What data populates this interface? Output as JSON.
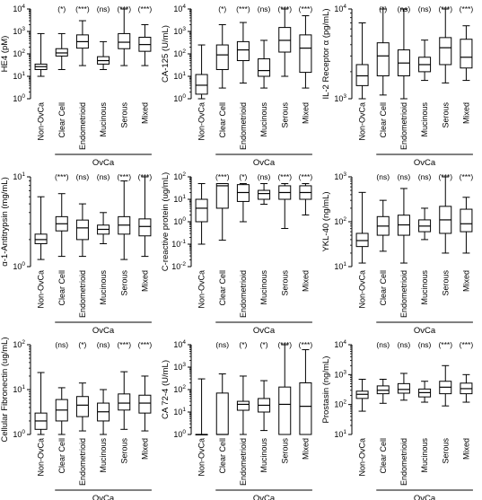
{
  "chart_data": [
    {
      "type": "boxplot",
      "ylabel": "HE4  (pM)",
      "log": true,
      "ylim": [
        1,
        10000
      ],
      "ytick_exponents": [
        0,
        1,
        2,
        3,
        4
      ],
      "group_label": "OvCa",
      "categories": [
        "Non-OvCa",
        "Clear Cell",
        "Endometrioid",
        "Mucinous",
        "Serous",
        "Mixed"
      ],
      "significance": [
        "",
        "(*)",
        "(***)",
        "(ns)",
        "(***)",
        "(***)"
      ],
      "boxes": [
        {
          "min": 10,
          "q1": 20,
          "median": 27,
          "q3": 35,
          "max": 800
        },
        {
          "min": 20,
          "q1": 80,
          "median": 110,
          "q3": 170,
          "max": 800
        },
        {
          "min": 30,
          "q1": 180,
          "median": 350,
          "q3": 700,
          "max": 3000
        },
        {
          "min": 20,
          "q1": 35,
          "median": 50,
          "q3": 75,
          "max": 350
        },
        {
          "min": 30,
          "q1": 170,
          "median": 330,
          "q3": 800,
          "max": 10000
        },
        {
          "min": 30,
          "q1": 130,
          "median": 260,
          "q3": 550,
          "max": 2000
        }
      ]
    },
    {
      "type": "boxplot",
      "ylabel": "CA-125 (U/mL)",
      "log": true,
      "ylim": [
        1,
        10000
      ],
      "ytick_exponents": [
        0,
        1,
        2,
        3,
        4
      ],
      "group_label": "OvCa",
      "categories": [
        "Non-OvCa",
        "Clear Cell",
        "Endometrioid",
        "Mucinous",
        "Serous",
        "Mixed"
      ],
      "significance": [
        "",
        "(*)",
        "(***)",
        "(ns)",
        "(***)",
        "(***)"
      ],
      "boxes": [
        {
          "min": 1,
          "q1": 1.6,
          "median": 4,
          "q3": 12,
          "max": 250
        },
        {
          "min": 3,
          "q1": 20,
          "median": 90,
          "q3": 250,
          "max": 2000
        },
        {
          "min": 5,
          "q1": 50,
          "median": 150,
          "q3": 350,
          "max": 2500
        },
        {
          "min": 3,
          "q1": 10,
          "median": 18,
          "q3": 60,
          "max": 400
        },
        {
          "min": 10,
          "q1": 120,
          "median": 400,
          "q3": 1500,
          "max": 10000
        },
        {
          "min": 3,
          "q1": 15,
          "median": 180,
          "q3": 700,
          "max": 5000
        }
      ]
    },
    {
      "type": "boxplot",
      "ylabel": "IL-2 Receptor α (pg/mL)",
      "log": true,
      "ylim": [
        1000,
        10000
      ],
      "ytick_exponents": [
        3,
        4
      ],
      "group_label": "OvCa",
      "categories": [
        "Non-OvCa",
        "Clear Cell",
        "Endometrioid",
        "Mucinous",
        "Serous",
        "Mixed"
      ],
      "significance": [
        "",
        "(*)",
        "(ns)",
        "(ns)",
        "(***)",
        "(***)"
      ],
      "boxes": [
        {
          "min": 1000,
          "q1": 1400,
          "median": 1800,
          "q3": 2400,
          "max": 7000
        },
        {
          "min": 1100,
          "q1": 1800,
          "median": 3000,
          "q3": 4200,
          "max": 10000
        },
        {
          "min": 1000,
          "q1": 1800,
          "median": 2500,
          "q3": 3500,
          "max": 10000
        },
        {
          "min": 1600,
          "q1": 2000,
          "median": 2400,
          "q3": 2900,
          "max": 4500
        },
        {
          "min": 1500,
          "q1": 2400,
          "median": 3700,
          "q3": 4800,
          "max": 10000
        },
        {
          "min": 1600,
          "q1": 2200,
          "median": 2900,
          "q3": 4600,
          "max": 6500
        }
      ]
    },
    {
      "type": "boxplot",
      "ylabel": "α-1-Antitrypsin (mg/mL)",
      "log": true,
      "ylim": [
        1,
        10
      ],
      "ytick_exponents": [
        0,
        1
      ],
      "group_label": "OvCa",
      "categories": [
        "Non-OvCa",
        "Clear Cell",
        "Endometrioid",
        "Mucinous",
        "Serous",
        "Mixed"
      ],
      "significance": [
        "",
        "(***)",
        "(ns)",
        "(ns)",
        "(***)",
        "(***)"
      ],
      "boxes": [
        {
          "min": 1.2,
          "q1": 1.8,
          "median": 2.0,
          "q3": 2.3,
          "max": 6
        },
        {
          "min": 1.3,
          "q1": 2.5,
          "median": 3.0,
          "q3": 3.6,
          "max": 6.5
        },
        {
          "min": 1.3,
          "q1": 2.0,
          "median": 2.7,
          "q3": 3.3,
          "max": 5
        },
        {
          "min": 1.8,
          "q1": 2.3,
          "median": 2.6,
          "q3": 2.9,
          "max": 4
        },
        {
          "min": 1.2,
          "q1": 2.3,
          "median": 2.9,
          "q3": 3.6,
          "max": 9
        },
        {
          "min": 1.3,
          "q1": 2.2,
          "median": 2.8,
          "q3": 3.4,
          "max": 10
        }
      ]
    },
    {
      "type": "boxplot",
      "ylabel": "C-reactive protein (ug/mL)",
      "log": true,
      "ylim": [
        0.01,
        100
      ],
      "ytick_exponents": [
        -2,
        -1,
        0,
        1,
        2
      ],
      "group_label": "OvCa",
      "categories": [
        "Non-OvCa",
        "Clear Cell",
        "Endometrioid",
        "Mucinous",
        "Serous",
        "Mixed"
      ],
      "significance": [
        "",
        "(***)",
        "(*)",
        "(ns)",
        "(***)",
        "(***)"
      ],
      "boxes": [
        {
          "min": 0.1,
          "q1": 1,
          "median": 4,
          "q3": 10,
          "max": 50
        },
        {
          "min": 0.15,
          "q1": 4,
          "median": 40,
          "q3": 50,
          "max": 50
        },
        {
          "min": 1,
          "q1": 8,
          "median": 20,
          "q3": 45,
          "max": 50
        },
        {
          "min": 6,
          "q1": 10,
          "median": 18,
          "q3": 25,
          "max": 50
        },
        {
          "min": 0.5,
          "q1": 10,
          "median": 20,
          "q3": 40,
          "max": 50
        },
        {
          "min": 2,
          "q1": 10,
          "median": 20,
          "q3": 40,
          "max": 50
        }
      ]
    },
    {
      "type": "boxplot",
      "ylabel": "YKL-40 (ng/mL)",
      "log": true,
      "ylim": [
        10,
        1000
      ],
      "ytick_exponents": [
        1,
        2,
        3
      ],
      "group_label": "OvCa",
      "categories": [
        "Non-OvCa",
        "Clear Cell",
        "Endometrioid",
        "Mucinous",
        "Serous",
        "Mixed"
      ],
      "significance": [
        "",
        "(ns)",
        "(ns)",
        "(ns)",
        "(***)",
        "(***)"
      ],
      "boxes": [
        {
          "min": 12,
          "q1": 28,
          "median": 38,
          "q3": 55,
          "max": 450
        },
        {
          "min": 22,
          "q1": 50,
          "median": 80,
          "q3": 130,
          "max": 300
        },
        {
          "min": 12,
          "q1": 50,
          "median": 85,
          "q3": 140,
          "max": 550
        },
        {
          "min": 40,
          "q1": 60,
          "median": 80,
          "q3": 110,
          "max": 200
        },
        {
          "min": 20,
          "q1": 55,
          "median": 110,
          "q3": 220,
          "max": 1000
        },
        {
          "min": 20,
          "q1": 60,
          "median": 90,
          "q3": 190,
          "max": 350
        }
      ]
    },
    {
      "type": "boxplot",
      "ylabel": "Cellular Fibronectin (ug/mL)",
      "log": true,
      "ylim": [
        1,
        100
      ],
      "ytick_exponents": [
        0,
        1,
        2
      ],
      "group_label": "OvCa",
      "categories": [
        "Non-OvCa",
        "Clear Cell",
        "Endometrioid",
        "Mucinous",
        "Serous",
        "Mixed"
      ],
      "significance": [
        "",
        "(ns)",
        "(*)",
        "(ns)",
        "(***)",
        "(***)"
      ],
      "boxes": [
        {
          "min": 1,
          "q1": 1.3,
          "median": 2,
          "q3": 3,
          "max": 24
        },
        {
          "min": 1,
          "q1": 2,
          "median": 3.5,
          "q3": 6,
          "max": 11
        },
        {
          "min": 1.2,
          "q1": 2.5,
          "median": 4.5,
          "q3": 7,
          "max": 14
        },
        {
          "min": 1,
          "q1": 2,
          "median": 3.2,
          "q3": 5,
          "max": 10
        },
        {
          "min": 1.3,
          "q1": 3.5,
          "median": 5,
          "q3": 8,
          "max": 25
        },
        {
          "min": 1.2,
          "q1": 3,
          "median": 5,
          "q3": 7.5,
          "max": 20
        }
      ]
    },
    {
      "type": "boxplot",
      "ylabel": "CA 72-4 (U/mL)",
      "log": true,
      "ylim": [
        1,
        10000
      ],
      "ytick_exponents": [
        0,
        1,
        2,
        3,
        4
      ],
      "group_label": "OvCa",
      "categories": [
        "Non-OvCa",
        "Clear Cell",
        "Endometrioid",
        "Mucinous",
        "Serous",
        "Mixed"
      ],
      "significance": [
        "",
        "(ns)",
        "(*)",
        "(*)",
        "(***)",
        "(***)"
      ],
      "boxes": [
        {
          "min": 1,
          "q1": 1,
          "median": 1,
          "q3": 1,
          "max": 300
        },
        {
          "min": 1,
          "q1": 1,
          "median": 1,
          "q3": 70,
          "max": 500
        },
        {
          "min": 1,
          "q1": 12,
          "median": 22,
          "q3": 30,
          "max": 400
        },
        {
          "min": 1.5,
          "q1": 10,
          "median": 20,
          "q3": 40,
          "max": 250
        },
        {
          "min": 1,
          "q1": 1,
          "median": 22,
          "q3": 130,
          "max": 10000
        },
        {
          "min": 1,
          "q1": 1,
          "median": 18,
          "q3": 200,
          "max": 6000
        }
      ]
    },
    {
      "type": "boxplot",
      "ylabel": "Prostasin (ng/mL)",
      "log": true,
      "ylim": [
        10,
        10000
      ],
      "ytick_exponents": [
        1,
        2,
        3,
        4
      ],
      "group_label": "OvCa",
      "categories": [
        "Non-OvCa",
        "Clear Cell",
        "Endometrioid",
        "Mucinous",
        "Serous",
        "Mixed"
      ],
      "significance": [
        "",
        "(ns)",
        "(ns)",
        "(ns)",
        "(***)",
        "(***)"
      ],
      "boxes": [
        {
          "min": 60,
          "q1": 160,
          "median": 220,
          "q3": 280,
          "max": 700
        },
        {
          "min": 110,
          "q1": 230,
          "median": 300,
          "q3": 420,
          "max": 700
        },
        {
          "min": 140,
          "q1": 240,
          "median": 320,
          "q3": 500,
          "max": 1100
        },
        {
          "min": 120,
          "q1": 180,
          "median": 250,
          "q3": 330,
          "max": 600
        },
        {
          "min": 90,
          "q1": 230,
          "median": 380,
          "q3": 600,
          "max": 2000
        },
        {
          "min": 120,
          "q1": 230,
          "median": 340,
          "q3": 520,
          "max": 1000
        }
      ]
    }
  ]
}
